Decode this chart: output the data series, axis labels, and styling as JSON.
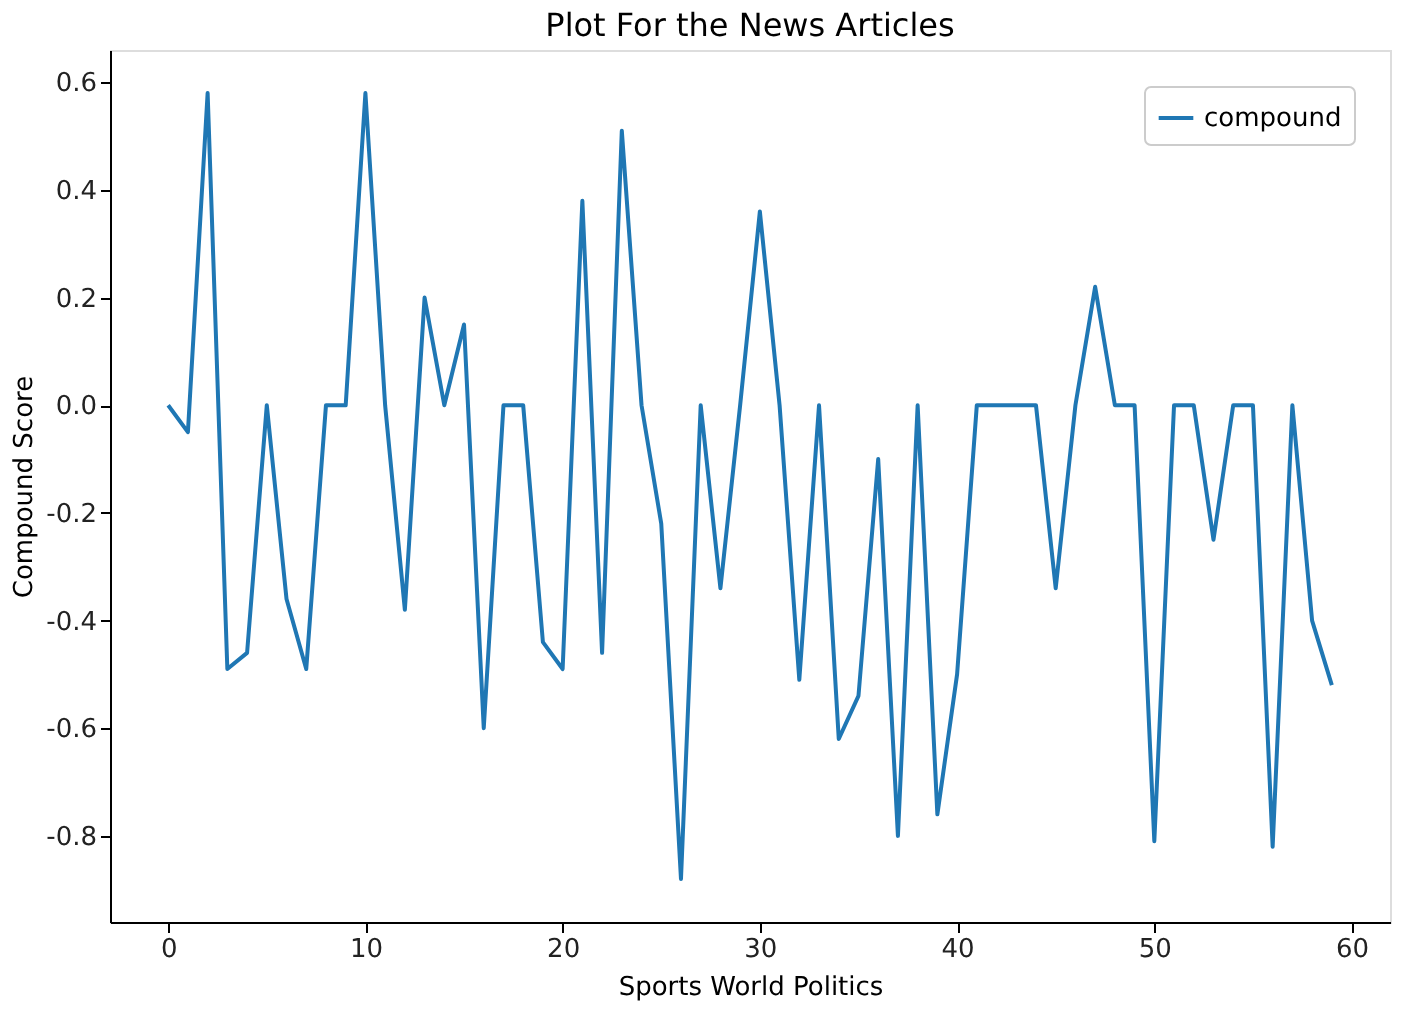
{
  "chart_data": {
    "type": "line",
    "title": "Plot For the News Articles",
    "xlabel": "Sports          World          Politics",
    "ylabel": "Compound Score",
    "x": [
      0,
      1,
      2,
      3,
      4,
      5,
      6,
      7,
      8,
      9,
      10,
      11,
      12,
      13,
      14,
      15,
      16,
      17,
      18,
      19,
      20,
      21,
      22,
      23,
      24,
      25,
      26,
      27,
      28,
      29,
      30,
      31,
      32,
      33,
      34,
      35,
      36,
      37,
      38,
      39,
      40,
      41,
      42,
      43,
      44,
      45,
      46,
      47,
      48,
      49,
      50,
      51,
      52,
      53,
      54,
      55,
      56,
      57,
      58,
      59
    ],
    "series": [
      {
        "name": "compound",
        "color": "#1f77b4",
        "values": [
          0.0,
          -0.05,
          0.58,
          -0.49,
          -0.46,
          0.0,
          -0.36,
          -0.49,
          0.0,
          0.0,
          0.58,
          0.0,
          -0.38,
          0.2,
          0.0,
          0.15,
          -0.6,
          0.0,
          0.0,
          -0.44,
          -0.49,
          0.38,
          -0.46,
          0.51,
          0.0,
          -0.22,
          -0.88,
          0.0,
          -0.34,
          0.0,
          0.36,
          0.0,
          -0.51,
          0.0,
          -0.62,
          -0.54,
          -0.1,
          -0.8,
          0.0,
          -0.76,
          -0.5,
          0.0,
          0.0,
          0.0,
          0.0,
          -0.34,
          0.0,
          0.22,
          0.0,
          0.0,
          -0.81,
          0.0,
          0.0,
          -0.25,
          0.0,
          0.0,
          -0.82,
          0.0,
          -0.4,
          -0.52
        ]
      }
    ],
    "xlim": [
      -2.95,
      61.95
    ],
    "xticks": [
      0,
      10,
      20,
      30,
      40,
      50,
      60
    ],
    "ylim": [
      -0.96,
      0.66
    ],
    "yticks": [
      {
        "value": -0.8,
        "label": "-0.8"
      },
      {
        "value": -0.6,
        "label": "-0.6"
      },
      {
        "value": -0.4,
        "label": "-0.4"
      },
      {
        "value": -0.2,
        "label": "-0.2"
      },
      {
        "value": 0,
        "label": "0.0"
      },
      {
        "value": 0.2,
        "label": "0.2"
      },
      {
        "value": 0.4,
        "label": "0.4"
      },
      {
        "value": 0.6,
        "label": "0.6"
      }
    ],
    "grid": false,
    "legend": "top right",
    "marker": "none",
    "line_style": "solid"
  }
}
